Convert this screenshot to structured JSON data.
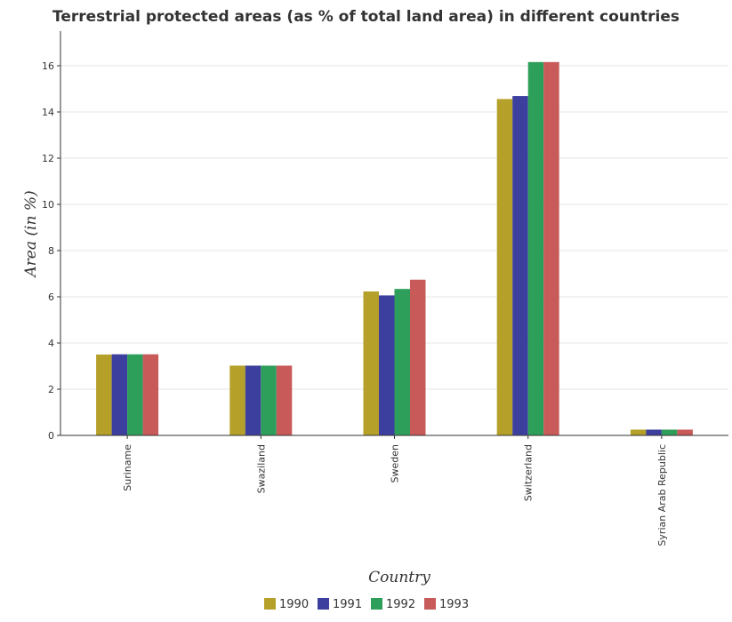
{
  "chart_data": {
    "type": "bar",
    "title": "Terrestrial protected areas (as % of total land area) in different countries",
    "xlabel": "Country",
    "ylabel": "Area (in %)",
    "categories": [
      "Suriname",
      "Swaziland",
      "Sweden",
      "Switzerland",
      "Syrian Arab Republic"
    ],
    "series": [
      {
        "name": "1990",
        "color": "#b5a02a",
        "values": [
          3.5,
          3.02,
          6.23,
          14.56,
          0.25
        ]
      },
      {
        "name": "1991",
        "color": "#3d3f9e",
        "values": [
          3.51,
          3.02,
          6.06,
          14.69,
          0.25
        ]
      },
      {
        "name": "1992",
        "color": "#2e9e5b",
        "values": [
          3.51,
          3.02,
          6.34,
          16.16,
          0.25
        ]
      },
      {
        "name": "1993",
        "color": "#c95a5a",
        "values": [
          3.51,
          3.02,
          6.74,
          16.16,
          0.25
        ]
      }
    ],
    "ylim": [
      0,
      17.5
    ],
    "yticks": [
      0,
      2,
      4,
      6,
      8,
      10,
      12,
      14,
      16
    ],
    "grid": true,
    "legend_position": "bottom-center"
  }
}
